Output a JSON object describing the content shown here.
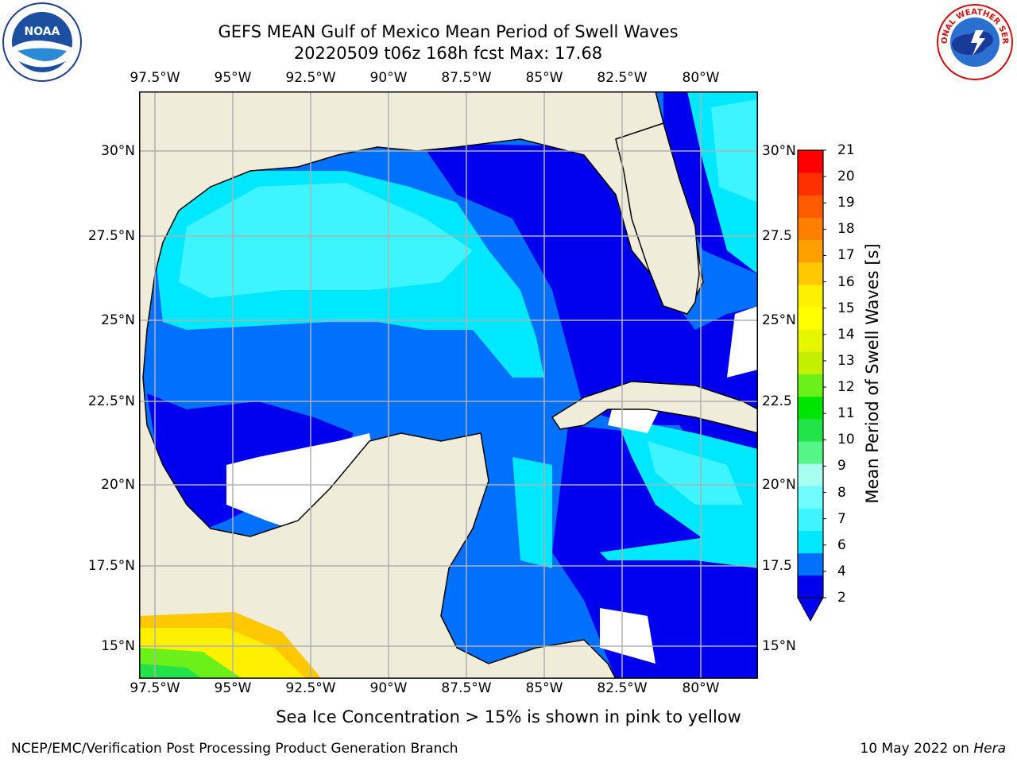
{
  "header": {
    "title_line1": "GEFS MEAN Gulf of Mexico Mean Period of Swell Waves",
    "title_line2": "20220509 t06z 168h fcst   Max: 17.68"
  },
  "map": {
    "lon_labels": [
      "97.5°W",
      "95°W",
      "92.5°W",
      "90°W",
      "87.5°W",
      "85°W",
      "82.5°W",
      "80°W"
    ],
    "lat_labels_left": [
      "30°N",
      "27.5°N",
      "25°N",
      "22.5°N",
      "20°N",
      "17.5°N",
      "15°N"
    ],
    "lat_labels_right": [
      "30°N",
      "27.5",
      "25°N",
      "22.5",
      "20°N",
      "17.5",
      "15°N"
    ],
    "colors": {
      "land": "#efedda",
      "no_data": "#ffffff",
      "grid": "#b0b0b0"
    }
  },
  "colorbar": {
    "title": "Mean Period of Swell Waves [s]",
    "ticks": [
      "21",
      "20",
      "19",
      "18",
      "17",
      "16",
      "15",
      "14",
      "13",
      "12",
      "11",
      "10",
      "9",
      "8",
      "7",
      "6",
      "4",
      "2"
    ],
    "colors": [
      "#0000ee",
      "#0070ff",
      "#00e8ff",
      "#3ef4ff",
      "#70fbff",
      "#a8ffef",
      "#55f588",
      "#22e34a",
      "#00e500",
      "#6cf01a",
      "#c2f000",
      "#e6f500",
      "#ffff00",
      "#fff000",
      "#ffc800",
      "#ffa000",
      "#ff8000",
      "#ff5a00",
      "#ff3000",
      "#ff0000"
    ]
  },
  "footer": {
    "note": "Sea Ice Concentration > 15% is shown in pink to yellow",
    "credit": "NCEP/EMC/Verification Post Processing Product Generation Branch",
    "date_prefix": "10 May 2022 on ",
    "machine": "Hera"
  },
  "logos": {
    "noaa_text": "NOAA",
    "nws_text": "NATIONAL WEATHER SERVICE"
  }
}
